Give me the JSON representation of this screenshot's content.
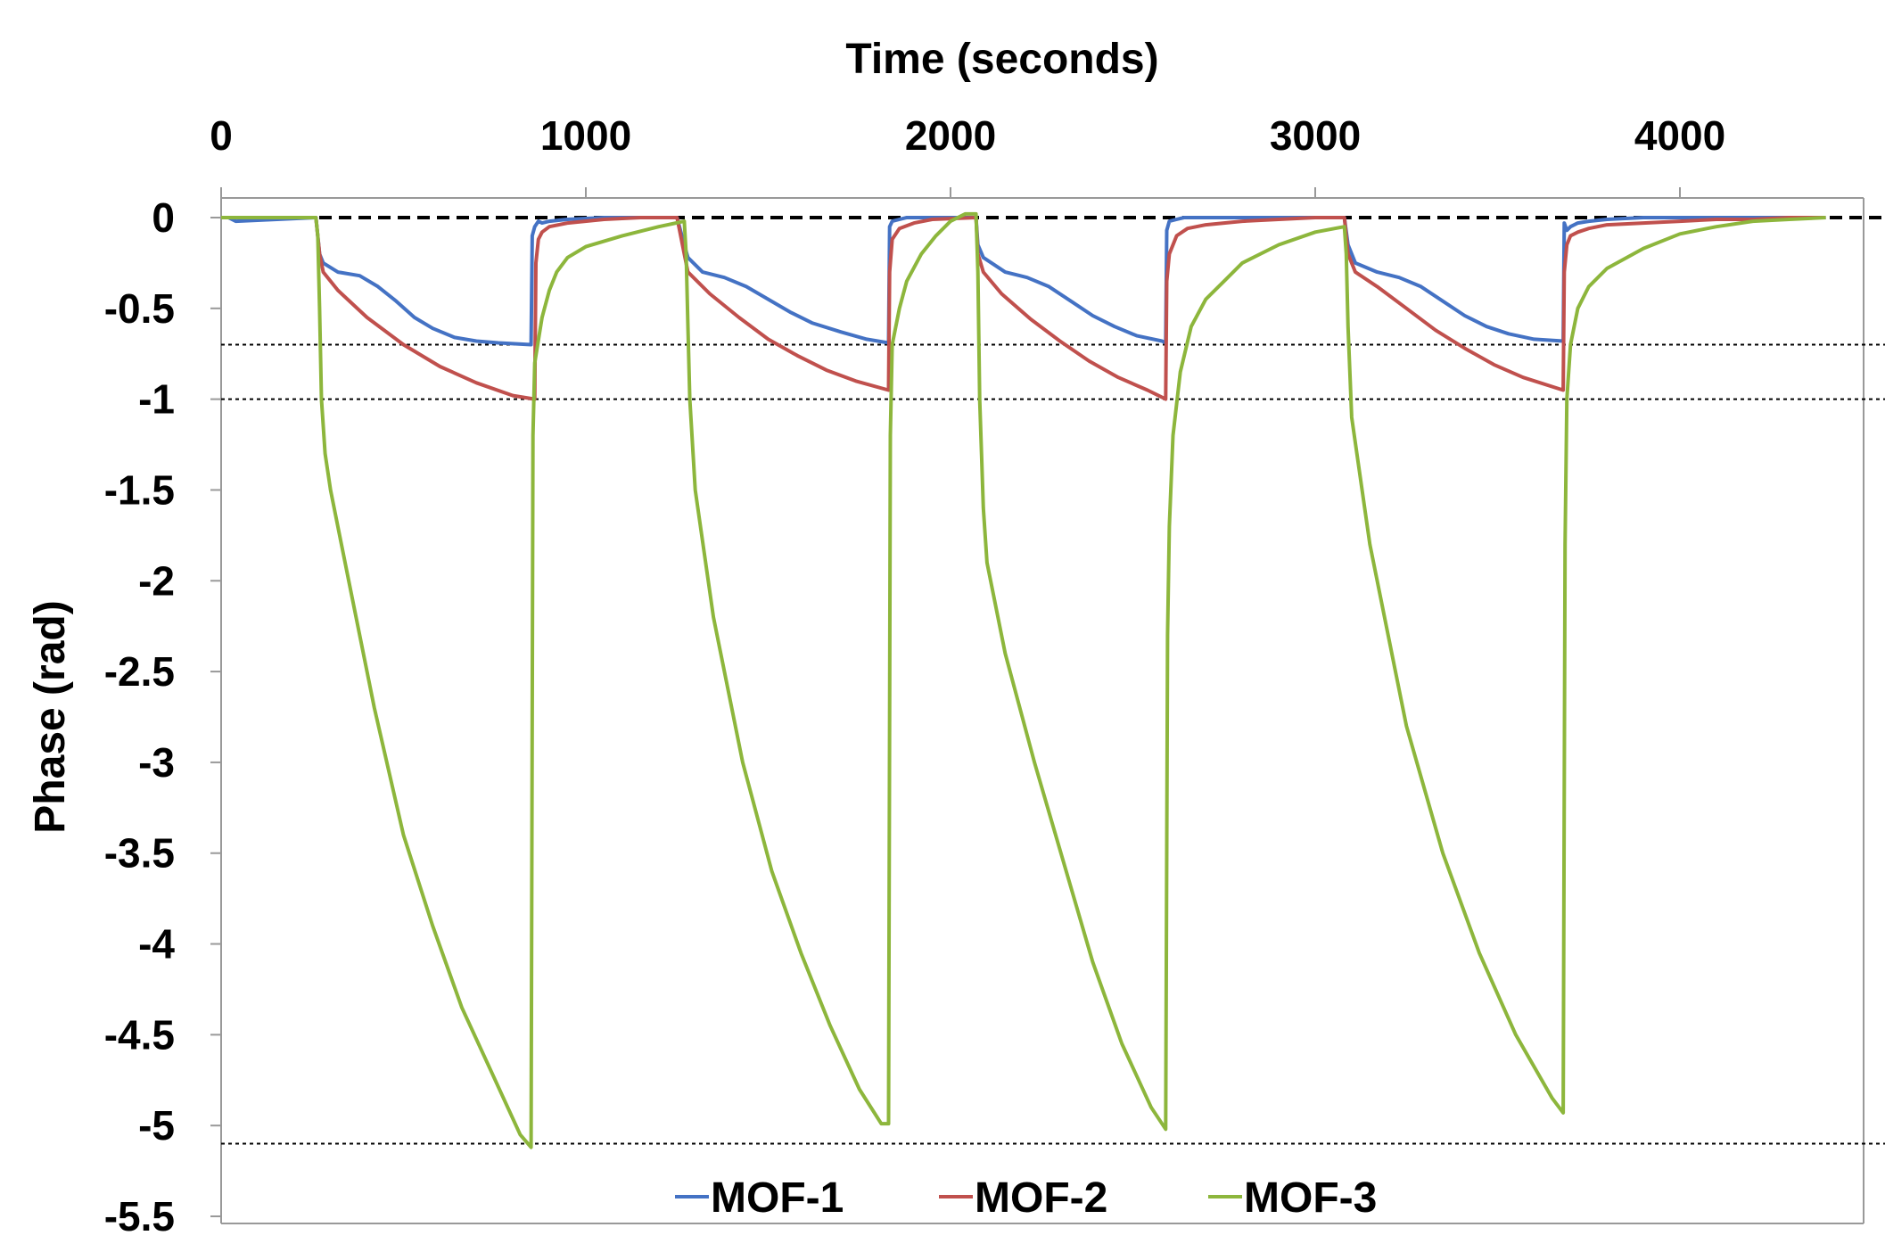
{
  "chart_data": {
    "type": "line",
    "title": "",
    "xlabel": "Time (seconds)",
    "ylabel": "Phase (rad)",
    "xlim": [
      0,
      4500
    ],
    "ylim": [
      -5.5,
      0.1
    ],
    "x_axis_position": "top",
    "x_ticks": [
      0,
      1000,
      2000,
      3000,
      4000
    ],
    "x_tick_labels": [
      "0",
      "1000",
      "2000",
      "3000",
      "4000"
    ],
    "y_ticks": [
      0,
      -0.5,
      -1,
      -1.5,
      -2,
      -2.5,
      -3,
      -3.5,
      -4,
      -4.5,
      -5,
      -5.5
    ],
    "y_tick_labels": [
      "0",
      "-0.5",
      "-1",
      "-1.5",
      "-2",
      "-2.5",
      "-3",
      "-3.5",
      "-4",
      "-4.5",
      "-5",
      "-5.5"
    ],
    "grid": false,
    "legend_position": "bottom-center",
    "reference_lines": [
      {
        "name": "baseline",
        "y": 0,
        "style": "dashed"
      },
      {
        "name": "mof1-min",
        "y": -0.7,
        "style": "dotted"
      },
      {
        "name": "mof2-min",
        "y": -1.0,
        "style": "dotted"
      },
      {
        "name": "mof3-min",
        "y": -5.1,
        "style": "dotted"
      }
    ],
    "series": [
      {
        "name": "MOF-1",
        "color": "#4472C4",
        "x": [
          0,
          20,
          40,
          260,
          270,
          280,
          320,
          380,
          430,
          480,
          530,
          580,
          640,
          700,
          760,
          850,
          853,
          860,
          870,
          880,
          900,
          950,
          1050,
          1150,
          1250,
          1270,
          1280,
          1320,
          1380,
          1440,
          1500,
          1560,
          1620,
          1700,
          1770,
          1830,
          1833,
          1840,
          1860,
          1880,
          1930,
          2000,
          2070,
          2075,
          2090,
          2150,
          2210,
          2270,
          2330,
          2390,
          2450,
          2510,
          2580,
          2590,
          2593,
          2600,
          2620,
          2640,
          2700,
          2800,
          2900,
          3000,
          3080,
          3090,
          3110,
          3170,
          3230,
          3290,
          3350,
          3410,
          3470,
          3530,
          3600,
          3680,
          3683,
          3690,
          3700,
          3720,
          3750,
          3800,
          3900,
          4000,
          4100,
          4200,
          4300,
          4400
        ],
        "y": [
          0,
          0,
          -0.02,
          0,
          -0.2,
          -0.25,
          -0.3,
          -0.32,
          -0.38,
          -0.46,
          -0.55,
          -0.61,
          -0.66,
          -0.68,
          -0.69,
          -0.7,
          -0.1,
          -0.05,
          -0.02,
          -0.03,
          -0.02,
          -0.01,
          0,
          0,
          0,
          -0.15,
          -0.22,
          -0.3,
          -0.33,
          -0.38,
          -0.45,
          -0.52,
          -0.58,
          -0.63,
          -0.67,
          -0.69,
          -0.05,
          -0.02,
          -0.01,
          0,
          0,
          0,
          0,
          -0.15,
          -0.22,
          -0.3,
          -0.33,
          -0.38,
          -0.46,
          -0.54,
          -0.6,
          -0.65,
          -0.68,
          -0.69,
          -0.07,
          -0.02,
          -0.01,
          0,
          0,
          0,
          0,
          0,
          0,
          -0.15,
          -0.25,
          -0.3,
          -0.33,
          -0.38,
          -0.46,
          -0.54,
          -0.6,
          -0.64,
          -0.67,
          -0.68,
          -0.03,
          -0.07,
          -0.05,
          -0.03,
          -0.02,
          -0.01,
          0,
          0,
          0,
          0,
          0,
          0
        ]
      },
      {
        "name": "MOF-2",
        "color": "#C0504D",
        "x": [
          0,
          40,
          260,
          270,
          280,
          320,
          400,
          500,
          600,
          700,
          800,
          860,
          863,
          870,
          880,
          900,
          950,
          1050,
          1150,
          1250,
          1270,
          1280,
          1340,
          1420,
          1500,
          1580,
          1660,
          1740,
          1830,
          1833,
          1840,
          1860,
          1900,
          1950,
          2070,
          2075,
          2090,
          2140,
          2220,
          2300,
          2380,
          2460,
          2540,
          2590,
          2593,
          2600,
          2620,
          2650,
          2700,
          2800,
          2900,
          3000,
          3080,
          3090,
          3110,
          3170,
          3250,
          3330,
          3410,
          3490,
          3570,
          3680,
          3683,
          3690,
          3700,
          3720,
          3750,
          3800,
          3900,
          4000,
          4100,
          4200,
          4300,
          4400
        ],
        "y": [
          0,
          0,
          0,
          -0.2,
          -0.3,
          -0.4,
          -0.55,
          -0.7,
          -0.82,
          -0.91,
          -0.98,
          -1.0,
          -0.25,
          -0.12,
          -0.08,
          -0.05,
          -0.03,
          -0.01,
          0,
          0,
          -0.2,
          -0.3,
          -0.42,
          -0.55,
          -0.67,
          -0.76,
          -0.84,
          -0.9,
          -0.95,
          -0.3,
          -0.12,
          -0.06,
          -0.03,
          -0.01,
          0,
          -0.2,
          -0.3,
          -0.42,
          -0.56,
          -0.68,
          -0.79,
          -0.88,
          -0.95,
          -1.0,
          -0.35,
          -0.2,
          -0.1,
          -0.06,
          -0.04,
          -0.02,
          -0.01,
          0,
          0,
          -0.2,
          -0.3,
          -0.38,
          -0.5,
          -0.62,
          -0.72,
          -0.81,
          -0.88,
          -0.95,
          -0.3,
          -0.15,
          -0.1,
          -0.08,
          -0.06,
          -0.04,
          -0.03,
          -0.02,
          -0.01,
          -0.01,
          0,
          0
        ]
      },
      {
        "name": "MOF-3",
        "color": "#8DB63C",
        "x": [
          0,
          40,
          260,
          265,
          270,
          275,
          285,
          300,
          350,
          420,
          500,
          580,
          660,
          740,
          820,
          850,
          855,
          860,
          880,
          900,
          920,
          950,
          1000,
          1100,
          1200,
          1270,
          1275,
          1280,
          1285,
          1300,
          1350,
          1430,
          1510,
          1590,
          1670,
          1750,
          1810,
          1830,
          1835,
          1840,
          1860,
          1880,
          1920,
          1960,
          2000,
          2040,
          2070,
          2075,
          2080,
          2090,
          2100,
          2150,
          2230,
          2310,
          2390,
          2470,
          2550,
          2590,
          2595,
          2600,
          2610,
          2630,
          2660,
          2700,
          2750,
          2800,
          2900,
          3000,
          3080,
          3085,
          3090,
          3100,
          3150,
          3250,
          3350,
          3450,
          3550,
          3650,
          3680,
          3685,
          3690,
          3700,
          3720,
          3750,
          3800,
          3900,
          4000,
          4100,
          4200,
          4300,
          4400
        ],
        "y": [
          0,
          0,
          0,
          -0.1,
          -0.5,
          -1.0,
          -1.3,
          -1.5,
          -2.0,
          -2.7,
          -3.4,
          -3.9,
          -4.35,
          -4.7,
          -5.05,
          -5.12,
          -1.2,
          -0.8,
          -0.55,
          -0.4,
          -0.3,
          -0.22,
          -0.16,
          -0.1,
          -0.05,
          -0.02,
          -0.2,
          -0.6,
          -1.0,
          -1.5,
          -2.2,
          -3.0,
          -3.6,
          -4.05,
          -4.45,
          -4.8,
          -4.99,
          -4.99,
          -1.2,
          -0.7,
          -0.5,
          -0.35,
          -0.2,
          -0.1,
          -0.02,
          0.02,
          0.02,
          -0.3,
          -1.0,
          -1.6,
          -1.9,
          -2.4,
          -3.0,
          -3.55,
          -4.1,
          -4.55,
          -4.9,
          -5.02,
          -2.3,
          -1.7,
          -1.2,
          -0.85,
          -0.6,
          -0.45,
          -0.35,
          -0.25,
          -0.15,
          -0.08,
          -0.05,
          -0.2,
          -0.6,
          -1.1,
          -1.8,
          -2.8,
          -3.5,
          -4.05,
          -4.5,
          -4.85,
          -4.93,
          -1.8,
          -1.0,
          -0.7,
          -0.5,
          -0.38,
          -0.28,
          -0.17,
          -0.09,
          -0.05,
          -0.02,
          -0.01,
          0
        ]
      }
    ]
  }
}
